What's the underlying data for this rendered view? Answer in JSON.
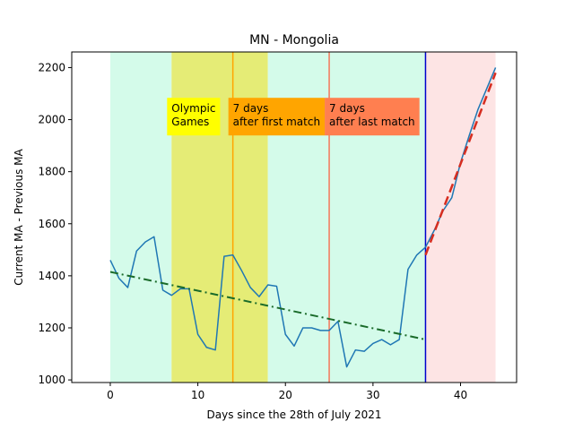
{
  "chart_data": {
    "type": "line",
    "title": "MN - Mongolia",
    "xlabel": "Days since the 28th of July 2021",
    "ylabel": "Current MA - Previous MA",
    "xlim": [
      -4.4,
      46.4
    ],
    "ylim": [
      990,
      2260
    ],
    "xticks": [
      0,
      10,
      20,
      30,
      40
    ],
    "yticks": [
      1000,
      1200,
      1400,
      1600,
      1800,
      2000,
      2200
    ],
    "grid": false,
    "series": [
      {
        "name": "",
        "color": "#1f77b4",
        "style": "solid",
        "x": [
          0,
          1,
          2,
          3,
          4,
          5,
          6,
          7,
          8,
          9,
          10,
          11,
          12,
          13,
          14,
          15,
          16,
          17,
          18,
          19,
          20,
          21,
          22,
          23,
          24,
          25,
          26,
          27,
          28,
          29,
          30,
          31,
          32,
          33,
          34,
          35,
          36,
          37,
          38,
          39,
          40,
          41,
          42,
          43,
          44
        ],
        "y": [
          1460,
          1390,
          1355,
          1495,
          1530,
          1550,
          1345,
          1325,
          1350,
          1350,
          1175,
          1125,
          1115,
          1475,
          1480,
          1420,
          1355,
          1320,
          1365,
          1360,
          1175,
          1130,
          1200,
          1200,
          1190,
          1190,
          1225,
          1050,
          1115,
          1110,
          1140,
          1155,
          1135,
          1155,
          1425,
          1480,
          1510,
          1575,
          1650,
          1700,
          1835,
          1940,
          2040,
          2120,
          2200
        ]
      },
      {
        "name": "",
        "color": "#1a6b2a",
        "style": "dashdot",
        "x": [
          0,
          36
        ],
        "y": [
          1415,
          1155
        ]
      },
      {
        "name": "",
        "color": "#d62d20",
        "style": "dashed",
        "x": [
          36,
          44
        ],
        "y": [
          1480,
          2180
        ]
      }
    ],
    "bands": [
      {
        "x0": 0,
        "x1": 7,
        "color": "#d4fbea"
      },
      {
        "x0": 7,
        "x1": 18,
        "color": "#e5ec76"
      },
      {
        "x0": 18,
        "x1": 36,
        "color": "#d4fbea"
      },
      {
        "x0": 36,
        "x1": 44,
        "color": "#fde4e4"
      }
    ],
    "vlines": [
      {
        "x": 14,
        "color": "#ffa500"
      },
      {
        "x": 25,
        "color": "#f4775a"
      },
      {
        "x": 36,
        "color": "#0000cc"
      }
    ],
    "annotations": [
      {
        "lines": [
          "Olympic",
          "Games"
        ],
        "x": 7,
        "y": 2070,
        "bg": "#ffff00"
      },
      {
        "lines": [
          "7 days",
          "after first match"
        ],
        "x": 14,
        "y": 2070,
        "bg": "#ffa500"
      },
      {
        "lines": [
          "7 days",
          "after last match"
        ],
        "x": 25,
        "y": 2070,
        "bg": "#ff7f50"
      }
    ]
  }
}
